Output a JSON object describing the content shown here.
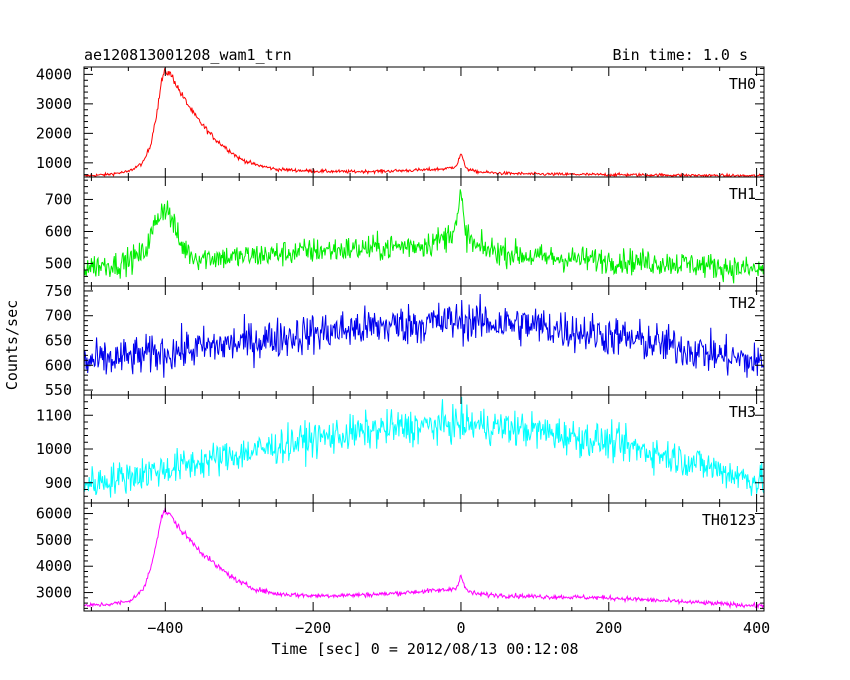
{
  "chart_data": {
    "type": "line",
    "title": "ae120813001208_wam1_trn",
    "subtitle": "Bin time: 1.0 s",
    "xlabel": "Time [sec] 0 = 2012/08/13 00:12:08",
    "ylabel": "Counts/sec",
    "xlim": [
      -510,
      410
    ],
    "xticks": [
      -400,
      -200,
      0,
      200,
      400
    ],
    "xtick_labels": [
      "−400",
      "−200",
      "0",
      "200",
      "400"
    ],
    "grid": false,
    "panels": [
      {
        "name": "TH0",
        "color": "#ff0000",
        "ylim": [
          520,
          4250
        ],
        "yticks": [
          1000,
          2000,
          3000,
          4000
        ],
        "x": [
          -510,
          -480,
          -450,
          -430,
          -420,
          -410,
          -405,
          -400,
          -395,
          -390,
          -380,
          -370,
          -360,
          -350,
          -340,
          -330,
          -320,
          -310,
          -300,
          -280,
          -250,
          -200,
          -150,
          -100,
          -50,
          -20,
          -10,
          -5,
          0,
          5,
          10,
          20,
          50,
          100,
          200,
          300,
          400
        ],
        "y": [
          560,
          600,
          700,
          1000,
          1600,
          2900,
          3800,
          4100,
          4050,
          3900,
          3400,
          3000,
          2600,
          2300,
          2000,
          1750,
          1550,
          1350,
          1150,
          950,
          780,
          720,
          700,
          720,
          760,
          800,
          860,
          950,
          1320,
          920,
          780,
          700,
          650,
          620,
          600,
          580,
          560
        ],
        "noise": 35
      },
      {
        "name": "TH1",
        "color": "#00ee00",
        "ylim": [
          430,
          770
        ],
        "yticks": [
          500,
          600,
          700
        ],
        "x": [
          -510,
          -460,
          -430,
          -420,
          -410,
          -400,
          -390,
          -380,
          -360,
          -300,
          -200,
          -100,
          -50,
          -20,
          -5,
          0,
          5,
          20,
          100,
          200,
          300,
          400
        ],
        "y": [
          490,
          500,
          530,
          580,
          650,
          680,
          630,
          560,
          520,
          520,
          540,
          550,
          560,
          580,
          630,
          720,
          600,
          550,
          520,
          510,
          500,
          480
        ],
        "noise": 28
      },
      {
        "name": "TH2",
        "color": "#0000ee",
        "ylim": [
          540,
          760
        ],
        "yticks": [
          550,
          600,
          650,
          700,
          750
        ],
        "x": [
          -510,
          -400,
          -300,
          -200,
          -100,
          0,
          100,
          200,
          300,
          400
        ],
        "y": [
          605,
          625,
          645,
          665,
          680,
          690,
          680,
          660,
          635,
          605
        ],
        "noise": 28
      },
      {
        "name": "TH3",
        "color": "#00ffff",
        "ylim": [
          840,
          1160
        ],
        "yticks": [
          900,
          1000,
          1100
        ],
        "x": [
          -510,
          -400,
          -300,
          -200,
          -100,
          0,
          100,
          200,
          300,
          400
        ],
        "y": [
          895,
          940,
          985,
          1030,
          1060,
          1075,
          1055,
          1020,
          970,
          905
        ],
        "noise": 35
      },
      {
        "name": "TH0123",
        "color": "#ff00ff",
        "ylim": [
          2300,
          6400
        ],
        "yticks": [
          3000,
          4000,
          5000,
          6000
        ],
        "x": [
          -510,
          -480,
          -450,
          -430,
          -420,
          -410,
          -405,
          -400,
          -395,
          -390,
          -380,
          -370,
          -360,
          -350,
          -340,
          -330,
          -320,
          -310,
          -300,
          -280,
          -250,
          -200,
          -150,
          -100,
          -50,
          -20,
          -10,
          -5,
          0,
          5,
          10,
          20,
          50,
          100,
          200,
          300,
          400
        ],
        "y": [
          2500,
          2550,
          2650,
          3100,
          3900,
          5200,
          5900,
          6100,
          6000,
          5800,
          5400,
          5100,
          4800,
          4500,
          4250,
          4000,
          3800,
          3600,
          3400,
          3150,
          2950,
          2880,
          2900,
          2950,
          3050,
          3100,
          3150,
          3250,
          3650,
          3200,
          3050,
          2950,
          2900,
          2850,
          2800,
          2650,
          2500
        ],
        "noise": 60
      }
    ]
  }
}
